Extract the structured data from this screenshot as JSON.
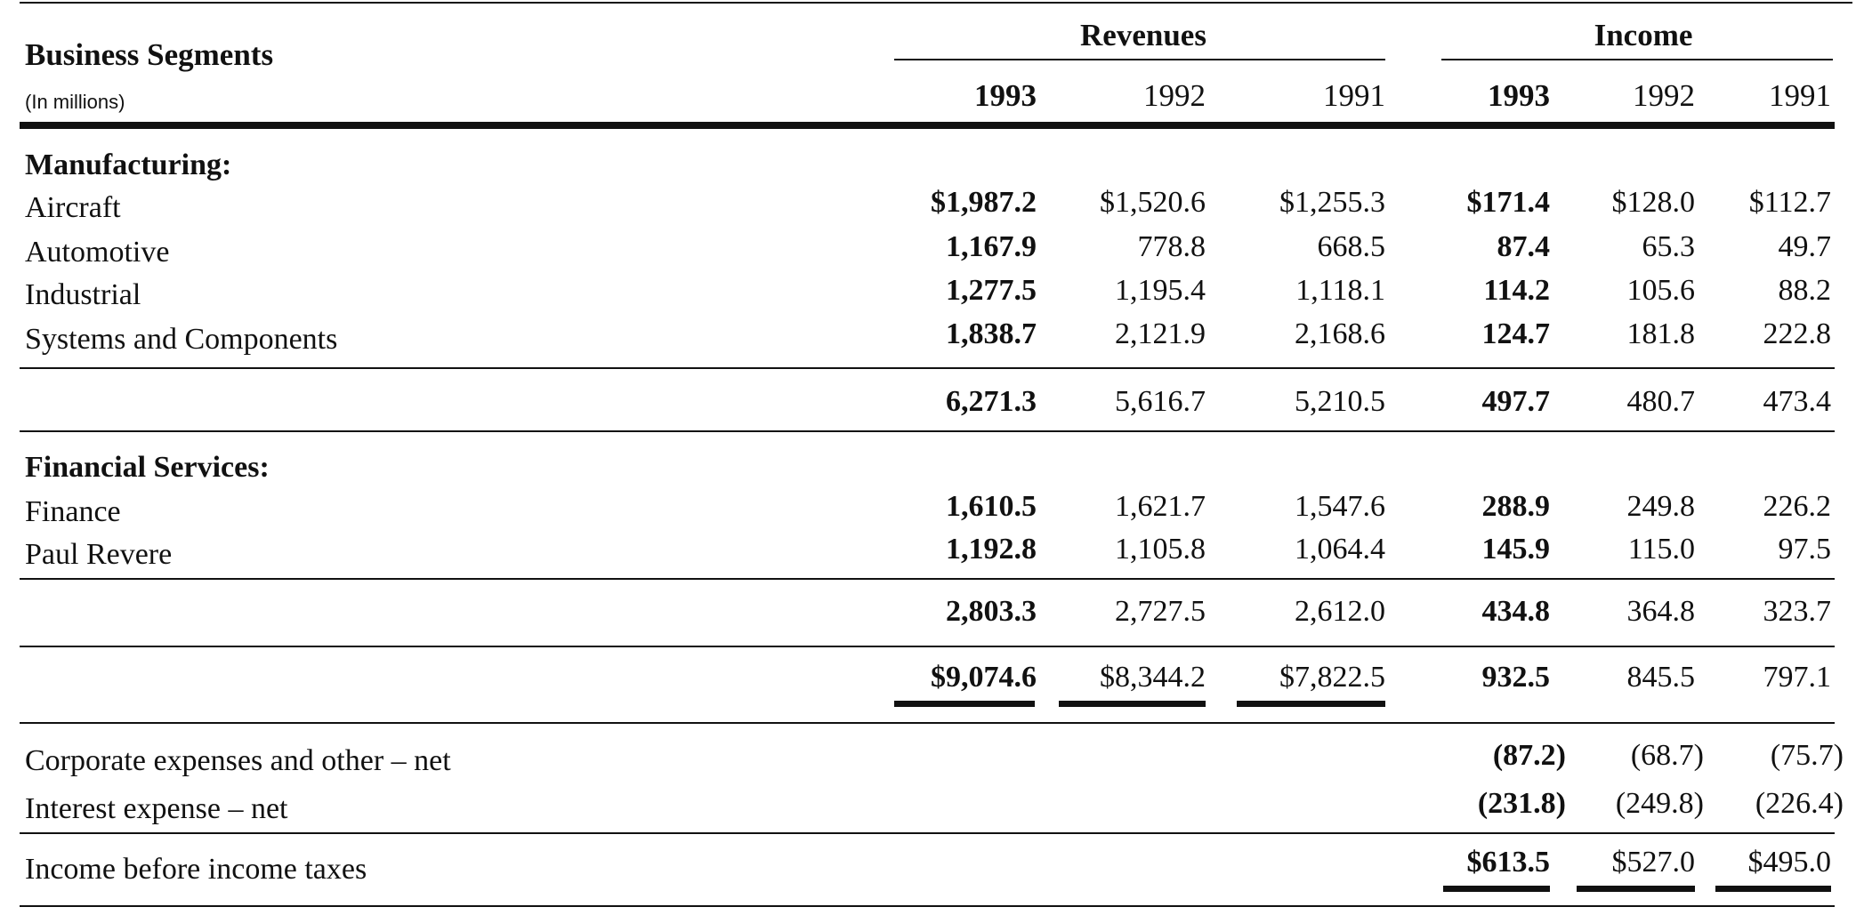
{
  "table": {
    "title": "Business Segments",
    "subtitle": "(In millions)",
    "group_headers": {
      "revenues": "Revenues",
      "income": "Income"
    },
    "years": [
      "1993",
      "1992",
      "1991"
    ],
    "sections": [
      {
        "heading": "Manufacturing:",
        "rows": [
          {
            "label": "Aircraft",
            "rev": [
              "$1,987.2",
              "$1,520.6",
              "$1,255.3"
            ],
            "inc": [
              "$171.4",
              "$128.0",
              "$112.7"
            ]
          },
          {
            "label": "Automotive",
            "rev": [
              "1,167.9",
              "778.8",
              "668.5"
            ],
            "inc": [
              "87.4",
              "65.3",
              "49.7"
            ]
          },
          {
            "label": "Industrial",
            "rev": [
              "1,277.5",
              "1,195.4",
              "1,118.1"
            ],
            "inc": [
              "114.2",
              "105.6",
              "88.2"
            ]
          },
          {
            "label": "Systems and Components",
            "rev": [
              "1,838.7",
              "2,121.9",
              "2,168.6"
            ],
            "inc": [
              "124.7",
              "181.8",
              "222.8"
            ]
          }
        ],
        "subtotal": {
          "rev": [
            "6,271.3",
            "5,616.7",
            "5,210.5"
          ],
          "inc": [
            "497.7",
            "480.7",
            "473.4"
          ]
        }
      },
      {
        "heading": "Financial Services:",
        "rows": [
          {
            "label": "Finance",
            "rev": [
              "1,610.5",
              "1,621.7",
              "1,547.6"
            ],
            "inc": [
              "288.9",
              "249.8",
              "226.2"
            ]
          },
          {
            "label": "Paul Revere",
            "rev": [
              "1,192.8",
              "1,105.8",
              "1,064.4"
            ],
            "inc": [
              "145.9",
              "115.0",
              "97.5"
            ]
          }
        ],
        "subtotal": {
          "rev": [
            "2,803.3",
            "2,727.5",
            "2,612.0"
          ],
          "inc": [
            "434.8",
            "364.8",
            "323.7"
          ]
        }
      }
    ],
    "total": {
      "rev": [
        "$9,074.6",
        "$8,344.2",
        "$7,822.5"
      ],
      "inc": [
        "932.5",
        "845.5",
        "797.1"
      ]
    },
    "adjustments": [
      {
        "label": "Corporate expenses and other – net",
        "inc": [
          "(87.2)",
          "(68.7)",
          "(75.7)"
        ]
      },
      {
        "label": "Interest expense – net",
        "inc": [
          "(231.8)",
          "(249.8)",
          "(226.4)"
        ]
      }
    ],
    "pretax": {
      "label": "Income before income taxes",
      "inc": [
        "$613.5",
        "$527.0",
        "$495.0"
      ]
    }
  }
}
